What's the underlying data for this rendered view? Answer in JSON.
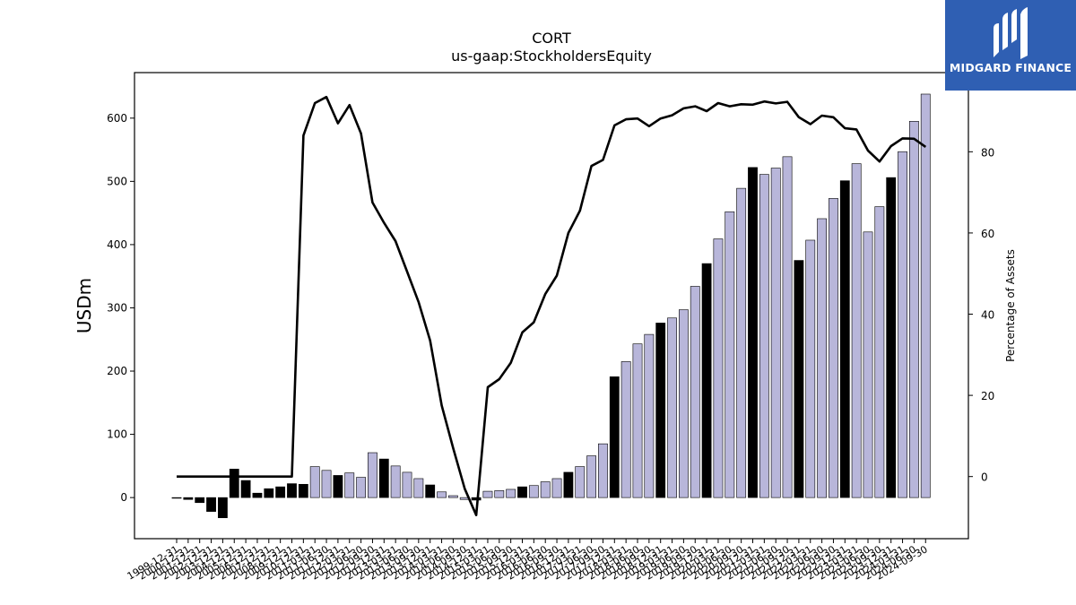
{
  "brand": {
    "name": "MIDGARD FINANCE",
    "bg_color": "#2f5fb3"
  },
  "chart_data": {
    "type": "bar+line",
    "title": "CORT",
    "subtitle": "us-gaap:StockholdersEquity",
    "ylabel": "USDm",
    "y2label": "Percentage of Assets",
    "ylim": [
      -65,
      672
    ],
    "y2lim": [
      -15.3,
      99.5
    ],
    "yticks": [
      0,
      100,
      200,
      300,
      400,
      500,
      600
    ],
    "y2ticks": [
      0,
      20,
      40,
      60,
      80
    ],
    "bar_colors": {
      "annual": "#000000",
      "quarterly": "#b8b6da"
    },
    "line_color": "#000000",
    "categories": [
      "1999-12-31",
      "2000-12-31",
      "2001-12-31",
      "2002-12-31",
      "2003-12-31",
      "2004-12-31",
      "2005-12-31",
      "2006-12-31",
      "2007-12-31",
      "2008-12-31",
      "2009-12-31",
      "2010-12-31",
      "2011-03-31",
      "2011-06-30",
      "2011-12-31",
      "2012-03-31",
      "2012-06-30",
      "2012-09-30",
      "2012-12-31",
      "2013-03-31",
      "2013-06-30",
      "2013-09-30",
      "2013-12-31",
      "2014-03-31",
      "2014-06-30",
      "2014-09-30",
      "2014-12-31",
      "2015-03-31",
      "2015-06-30",
      "2015-09-30",
      "2015-12-31",
      "2016-03-31",
      "2016-06-30",
      "2016-09-30",
      "2016-12-31",
      "2017-03-31",
      "2017-06-30",
      "2017-09-30",
      "2017-12-31",
      "2018-03-31",
      "2018-06-30",
      "2018-09-30",
      "2018-12-31",
      "2019-03-31",
      "2019-06-30",
      "2019-09-30",
      "2019-12-31",
      "2020-03-31",
      "2020-06-30",
      "2020-09-30",
      "2020-12-31",
      "2021-03-31",
      "2021-06-30",
      "2021-09-30",
      "2021-12-31",
      "2022-03-31",
      "2022-06-30",
      "2022-09-30",
      "2022-12-31",
      "2023-03-31",
      "2023-06-30",
      "2023-09-30",
      "2023-12-31",
      "2024-03-31",
      "2024-06-30",
      "2024-09-30"
    ],
    "bar_values": [
      -1,
      -3,
      -8,
      -22,
      -32,
      45,
      27,
      7,
      14,
      17,
      22,
      21,
      49,
      43,
      35,
      39,
      32,
      71,
      61,
      50,
      40,
      30,
      20,
      9,
      3,
      -3,
      -4,
      10,
      11,
      13,
      17,
      19,
      25,
      30,
      40,
      49,
      66,
      85,
      191,
      215,
      243,
      258,
      276,
      284,
      297,
      334,
      370,
      409,
      452,
      489,
      522,
      511,
      521,
      539,
      375,
      407,
      441,
      473,
      501,
      528,
      420,
      460,
      506,
      547,
      595,
      638
    ],
    "bar_is_annual": [
      true,
      true,
      true,
      true,
      true,
      true,
      true,
      true,
      true,
      true,
      true,
      true,
      false,
      false,
      true,
      false,
      false,
      false,
      true,
      false,
      false,
      false,
      true,
      false,
      false,
      false,
      true,
      false,
      false,
      false,
      true,
      false,
      false,
      false,
      true,
      false,
      false,
      false,
      true,
      false,
      false,
      false,
      true,
      false,
      false,
      false,
      true,
      false,
      false,
      false,
      true,
      false,
      false,
      false,
      true,
      false,
      false,
      false,
      true,
      false,
      false,
      false,
      true,
      false,
      false,
      false
    ],
    "line_values": [
      0,
      0,
      0,
      0,
      0,
      0,
      0,
      0,
      0,
      0,
      0,
      84,
      92,
      93.5,
      87,
      91.5,
      84.5,
      67.5,
      62.5,
      58,
      50.5,
      43,
      33.5,
      17.5,
      7,
      -3,
      -9.5,
      22,
      24,
      28,
      35.5,
      38,
      45,
      49.5,
      60,
      65.5,
      76.5,
      78,
      86.5,
      88,
      88.2,
      86.3,
      88.2,
      89,
      90.7,
      91.2,
      90,
      92,
      91.2,
      91.7,
      91.6,
      92.4,
      91.9,
      92.3,
      88.5,
      86.8,
      88.9,
      88.5,
      85.8,
      85.5,
      80.3,
      77.6,
      81.4,
      83.3,
      83.2,
      81.2
    ],
    "xtick_labels": [
      "1999-12-31",
      "2000-12-31",
      "2001-12-31",
      "2002-12-31",
      "2003-12-31",
      "2004-12-31",
      "2005-12-31",
      "2006-12-31",
      "2007-12-31",
      "2008-12-31",
      "2009-12-31",
      "2010-12-31",
      "2011-03-31",
      "2011-06-30",
      "2011-12-31",
      "2012-03-31",
      "2012-06-30",
      "2012-09-30",
      "2012-12-31",
      "2013-03-31",
      "2013-06-30",
      "2013-09-30",
      "2013-12-31",
      "2014-03-31",
      "2014-06-30",
      "2014-09-30",
      "2014-12-31",
      "2015-03-31",
      "2015-06-30",
      "2015-09-30",
      "2015-12-31",
      "2016-03-31",
      "2016-06-30",
      "2016-09-30",
      "2016-12-31",
      "2017-03-31",
      "2017-06-30",
      "2017-09-30",
      "2017-12-31",
      "2018-03-31",
      "2018-06-30",
      "2018-09-30",
      "2018-12-31",
      "2019-03-31",
      "2019-06-30",
      "2019-09-30",
      "2019-12-31",
      "2020-03-31",
      "2020-06-30",
      "2020-09-30",
      "2020-12-31",
      "2021-03-31",
      "2021-06-30",
      "2021-09-30",
      "2021-12-31",
      "2022-03-31",
      "2022-06-30",
      "2022-09-30",
      "2022-12-31",
      "2023-03-31",
      "2023-06-30",
      "2023-09-30",
      "2023-12-31",
      "2024-03-31",
      "2024-06-30",
      "2024-09-30"
    ],
    "grid": false,
    "legend": "none"
  }
}
